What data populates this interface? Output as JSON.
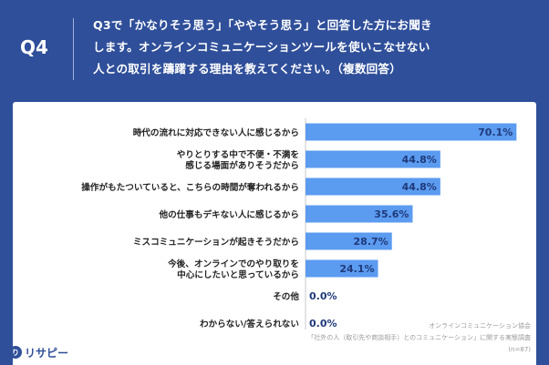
{
  "header": {
    "qnum": "Q4",
    "question_lines": [
      "Q3で「かなりそう思う」「ややそう思う」と回答した方にお聞き",
      "します。オンラインコミュニケーションツールを使いこなせない",
      "人との取引を躊躇する理由を教えてください。（複数回答）"
    ]
  },
  "chart_data": {
    "type": "bar",
    "orientation": "horizontal",
    "title": "",
    "xlabel": "",
    "ylabel": "",
    "xlim": [
      0,
      100
    ],
    "unit": "%",
    "categories": [
      [
        "時代の流れに対応できない人に感じるから"
      ],
      [
        "やりとりする中で不便・不満を",
        "感じる場面がありそうだから"
      ],
      [
        "操作がもたついていると、こちらの時間が奪われるから"
      ],
      [
        "他の仕事もデキない人に感じるから"
      ],
      [
        "ミスコミュニケーションが起きそうだから"
      ],
      [
        "今後、オンラインでのやり取りを",
        "中心にしたいと思っているから"
      ],
      [
        "その他"
      ],
      [
        "わからない/答えられない"
      ]
    ],
    "values": [
      70.1,
      44.8,
      44.8,
      35.6,
      28.7,
      24.1,
      0.0,
      0.0
    ],
    "value_labels": [
      "70.1%",
      "44.8%",
      "44.8%",
      "35.6%",
      "28.7%",
      "24.1%",
      "0.0%",
      "0.0%"
    ],
    "bar_color": "#5b9bf0"
  },
  "source": {
    "line1": "オンラインコミュニケーション協会",
    "line2": "「社外の人（取引先や商談相手）とのコミュニケーション」に関する実態調査",
    "line3": "(n=87)"
  },
  "logo": {
    "mark": "り",
    "text": "リサピー"
  }
}
